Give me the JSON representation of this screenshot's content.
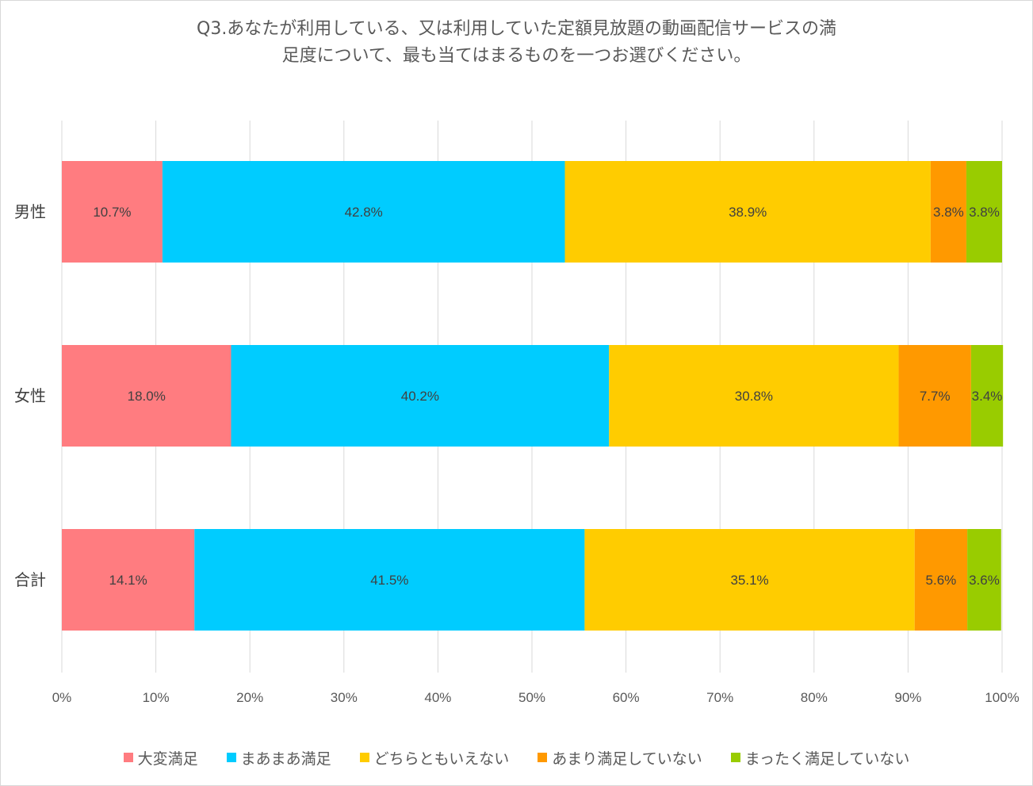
{
  "chart_data": {
    "type": "bar",
    "orientation": "horizontal",
    "stacked": "100%",
    "title_lines": [
      "Q3.あなたが利用している、又は利用していた定額見放題の動画配信サービスの満",
      "足度について、最も当てはまるものを一つお選びください。"
    ],
    "categories": [
      "男性",
      "女性",
      "合計"
    ],
    "series": [
      {
        "name": "大変満足",
        "color": "#ff7c80",
        "values": [
          10.7,
          18.0,
          14.1
        ],
        "labels": [
          "10.7%",
          "18.0%",
          "14.1%"
        ]
      },
      {
        "name": "まあまあ満足",
        "color": "#00ccff",
        "values": [
          42.8,
          40.2,
          41.5
        ],
        "labels": [
          "42.8%",
          "40.2%",
          "41.5%"
        ]
      },
      {
        "name": "どちらともいえない",
        "color": "#ffcc00",
        "values": [
          38.9,
          30.8,
          35.1
        ],
        "labels": [
          "38.9%",
          "30.8%",
          "35.1%"
        ]
      },
      {
        "name": "あまり満足していない",
        "color": "#ff9900",
        "values": [
          3.8,
          7.7,
          5.6
        ],
        "labels": [
          "3.8%",
          "7.7%",
          "5.6%"
        ]
      },
      {
        "name": "まったく満足していない",
        "color": "#99cc00",
        "values": [
          3.8,
          3.4,
          3.6
        ],
        "labels": [
          "3.8%",
          "3.4%",
          "3.6%"
        ]
      }
    ],
    "x_ticks": [
      "0%",
      "10%",
      "20%",
      "30%",
      "40%",
      "50%",
      "60%",
      "70%",
      "80%",
      "90%",
      "100%"
    ],
    "xlim": [
      0,
      100
    ],
    "grid": true,
    "legend_position": "bottom"
  }
}
